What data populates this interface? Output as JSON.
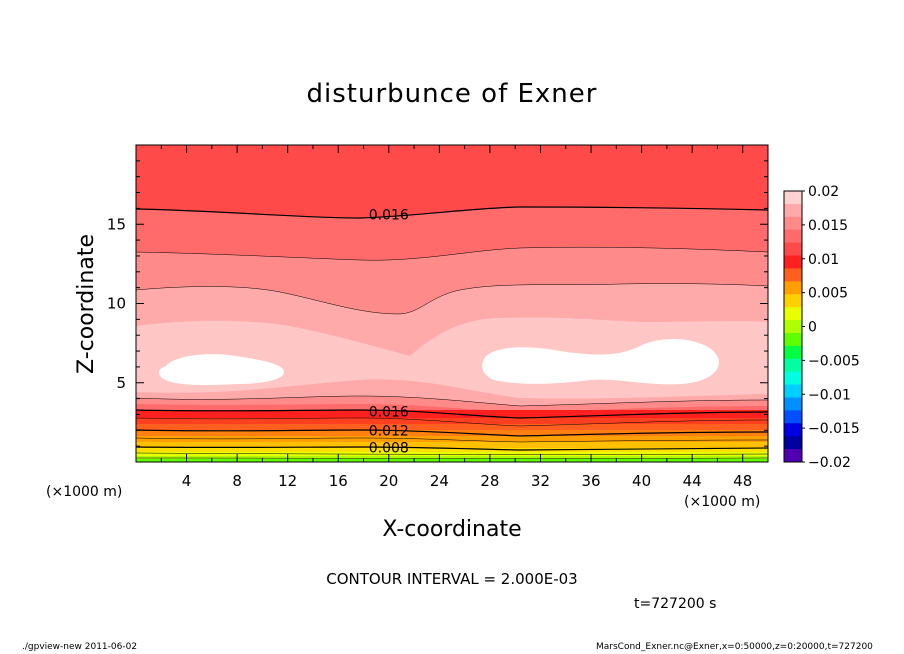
{
  "chart_data": {
    "type": "heatmap",
    "subtype": "filled-contour",
    "title": "disturbunce of Exner",
    "xlabel": "X-coordinate",
    "ylabel": "Z-coordinate",
    "x_units": "(×1000 m)",
    "x_units_right": "(×1000 m)",
    "xlim": [
      0,
      50
    ],
    "ylim": [
      0,
      20
    ],
    "x_ticks": [
      4,
      8,
      12,
      16,
      20,
      24,
      28,
      32,
      36,
      40,
      44,
      48
    ],
    "y_ticks": [
      5,
      10,
      15
    ],
    "contour_interval_text": "CONTOUR INTERVAL = 2.000E-03",
    "time_text": "t=727200 s",
    "contour_labels": [
      {
        "text": "0.016",
        "x": 20,
        "z": 15.6
      },
      {
        "text": "0.016",
        "x": 20,
        "z": 3.2
      },
      {
        "text": "0.012",
        "x": 20,
        "z": 2.0
      },
      {
        "text": "0.008",
        "x": 20,
        "z": 0.9
      }
    ],
    "colorbar": {
      "tick_labels": [
        "0.02",
        "0.015",
        "0.01",
        "0.005",
        "0",
        "−0.005",
        "−0.01",
        "−0.015",
        "−0.02"
      ],
      "levels_top_to_bottom": [
        "#ffd2d2",
        "#ffaaaa",
        "#ff8a8a",
        "#ff6a6a",
        "#ff4a4a",
        "#ff2020",
        "#ff6020",
        "#ffa000",
        "#ffd000",
        "#e8ff00",
        "#b0ff00",
        "#60ff00",
        "#00ff40",
        "#00ffa0",
        "#00ffe0",
        "#00d0ff",
        "#0090ff",
        "#0050ff",
        "#0000e0",
        "#0000a0",
        "#5000b0"
      ]
    }
  },
  "footer": {
    "left": "./gpview-new  2011-06-02",
    "right": "MarsCond_Exner.nc@Exner,x=0:50000,z=0:20000,t=727200"
  }
}
